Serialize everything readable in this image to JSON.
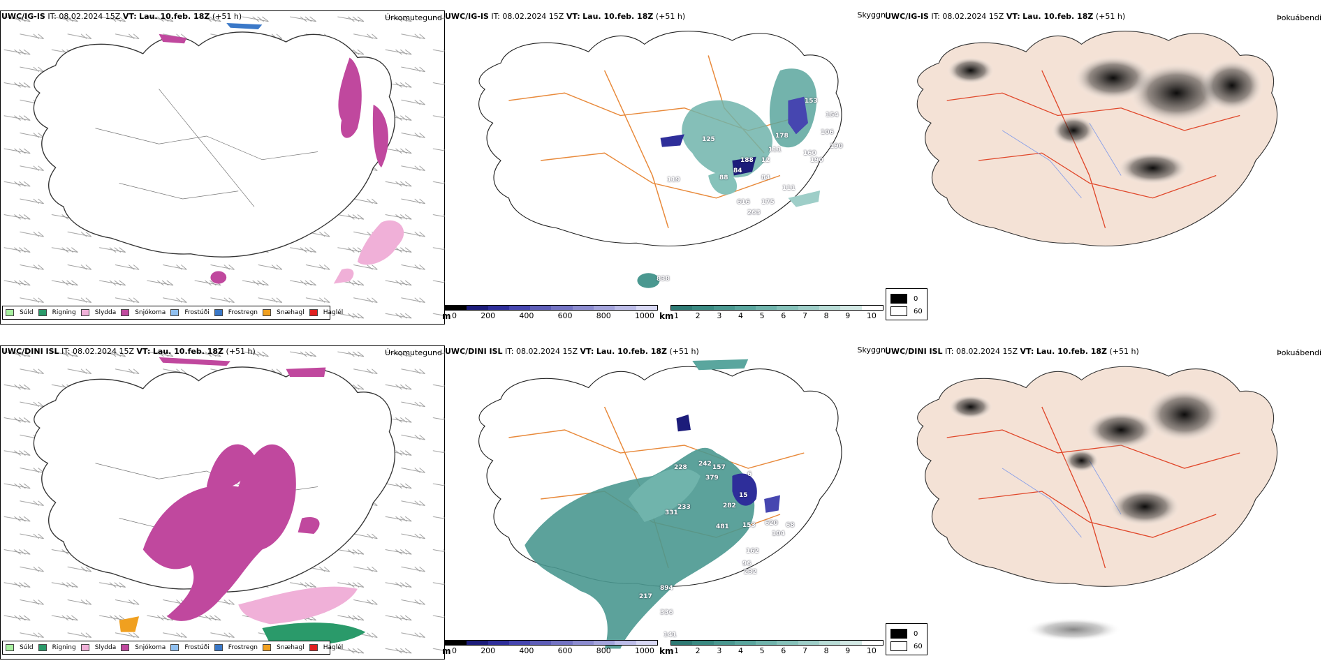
{
  "colors": {
    "land_fill_fog": "#f4e2d6",
    "road_red": "#e0472a",
    "road_orange": "#e8893a",
    "river_blue": "#8aa0e8",
    "snow_magenta": "#c0489e",
    "sleet_pink": "#f0b0d8",
    "rain_green": "#2a9a6a",
    "cloud_teal": "#3a8a82"
  },
  "rows": [
    {
      "model": "UWC/IG-IS",
      "it_label": "IT:",
      "it_value": "08.02.2024 15Z",
      "vt_label": "VT:",
      "vt_value": "Lau. 10.feb. 18Z",
      "lead": "(+51 h)",
      "params": {
        "precip": "Úrkomutegund",
        "cloud": "Skyggni",
        "fog": "Þokuábendi"
      },
      "cloud_labels": [
        "153",
        "154",
        "190",
        "106",
        "160",
        "178",
        "190",
        "111",
        "125",
        "188",
        "84",
        "12",
        "84",
        "88",
        "119",
        "111",
        "175",
        "616",
        "263",
        "838"
      ]
    },
    {
      "model": "UWC/DINI ISL",
      "it_label": "IT:",
      "it_value": "08.02.2024 15Z",
      "vt_label": "VT:",
      "vt_value": "Lau. 10.feb. 18Z",
      "lead": "(+51 h)",
      "params": {
        "precip": "Úrkomutegund",
        "cloud": "Skyggni",
        "fog": "Þokuábendi"
      },
      "cloud_labels": [
        "242",
        "157",
        "379",
        "228",
        "6",
        "15",
        "282",
        "331",
        "233",
        "153",
        "620",
        "481",
        "68",
        "104",
        "162",
        "96",
        "232",
        "894",
        "217",
        "141",
        "336"
      ]
    }
  ],
  "precip_legend": [
    {
      "label": "Súld",
      "color": "#a8f0a0"
    },
    {
      "label": "Rigning",
      "color": "#2a9a6a"
    },
    {
      "label": "Slydda",
      "color": "#f0b0d8"
    },
    {
      "label": "Snjókoma",
      "color": "#c0489e"
    },
    {
      "label": "Frostúði",
      "color": "#90c0f0"
    },
    {
      "label": "Frostregn",
      "color": "#3a78c8"
    },
    {
      "label": "Snæhagl",
      "color": "#f0a020"
    },
    {
      "label": "Haglél",
      "color": "#e02020"
    }
  ],
  "height_scale": {
    "unit": "m",
    "ticks": [
      "0",
      "200",
      "400",
      "600",
      "800",
      "1000"
    ],
    "colors": [
      "#000000",
      "#1c1c7a",
      "#2e2e9a",
      "#4646b0",
      "#5e5eb8",
      "#7474c4",
      "#8c8cd0",
      "#a4a4dc",
      "#bcbce8",
      "#d8d8f4"
    ]
  },
  "vis_scale": {
    "unit": "km",
    "ticks": [
      "1",
      "2",
      "3",
      "4",
      "5",
      "6",
      "7",
      "8",
      "9",
      "10"
    ],
    "colors": [
      "#2e7a74",
      "#3a8a82",
      "#4a9890",
      "#5aa69e",
      "#70b4ac",
      "#86c2ba",
      "#9ecec8",
      "#b8dcd6",
      "#d2e8e4",
      "#ffffff"
    ]
  },
  "fog_legend": [
    {
      "label": "0",
      "color": "#000000"
    },
    {
      "label": "60",
      "color": "#ffffff"
    }
  ]
}
